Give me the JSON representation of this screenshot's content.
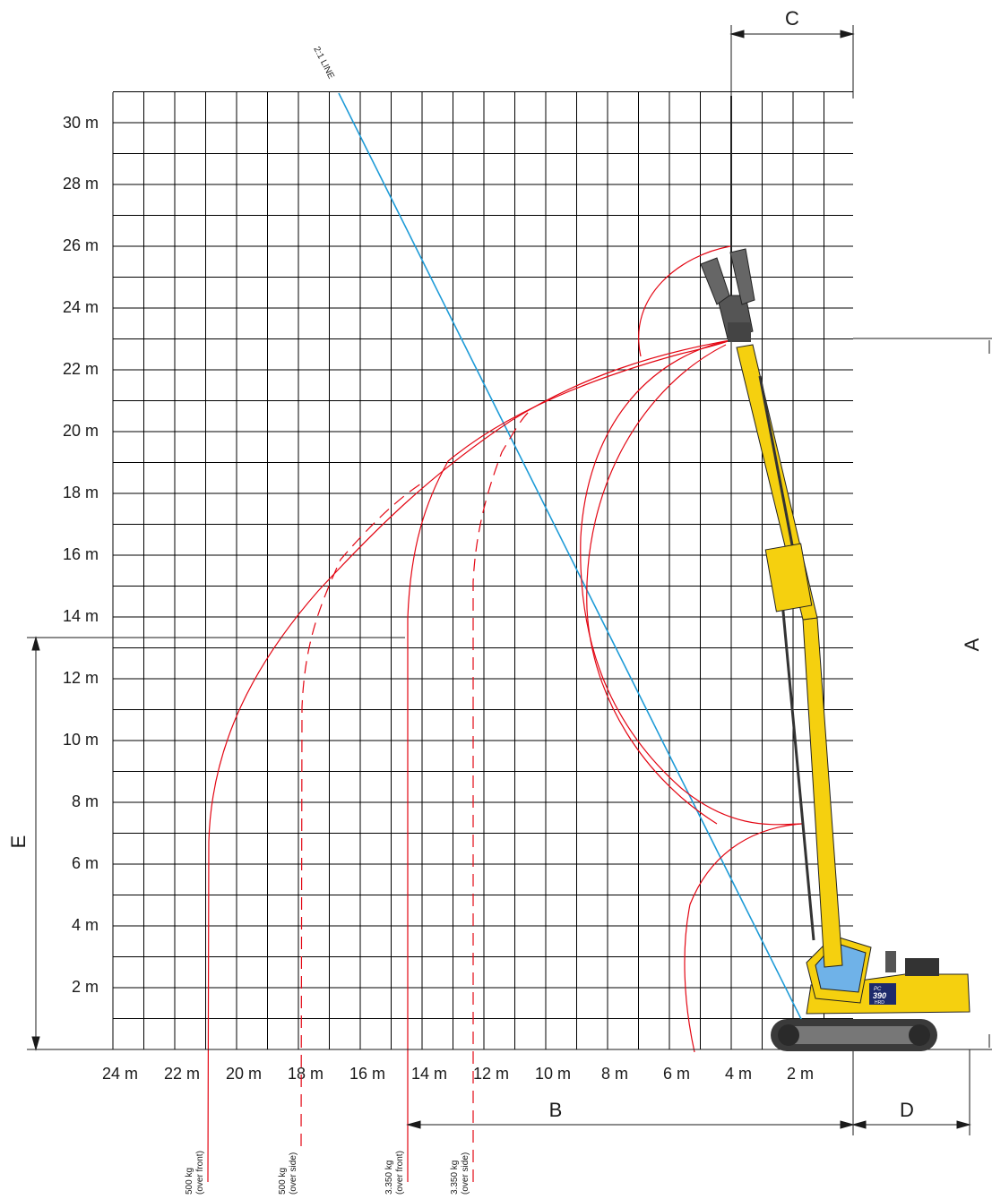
{
  "y_ticks": [
    "30 m",
    "28 m",
    "26 m",
    "24 m",
    "22 m",
    "20 m",
    "18 m",
    "16 m",
    "14 m",
    "12 m",
    "10 m",
    "8 m",
    "6 m",
    "4 m",
    "2 m"
  ],
  "x_ticks": [
    "24 m",
    "22 m",
    "20 m",
    "18 m",
    "16 m",
    "14 m",
    "12 m",
    "10 m",
    "8 m",
    "6 m",
    "4 m",
    "2 m"
  ],
  "dimension_labels": {
    "a": "A",
    "b": "B",
    "c": "C",
    "d": "D",
    "e": "E"
  },
  "line_label": "2:1 LINE",
  "load_captions": [
    {
      "weight": "500 kg",
      "mode": "(over front)"
    },
    {
      "weight": "500 kg",
      "mode": "(over side)"
    },
    {
      "weight": "3.350 kg",
      "mode": "(over front)"
    },
    {
      "weight": "3.350 kg",
      "mode": "(over side)"
    }
  ],
  "machine": {
    "model": "PC",
    "number": "390",
    "suffix": "HRD"
  },
  "colors": {
    "grid": "#000000",
    "envelope": "#e30613",
    "ratio_line": "#1e9bd7",
    "machine_body": "#f5d00f",
    "track": "#3a3a3a"
  }
}
